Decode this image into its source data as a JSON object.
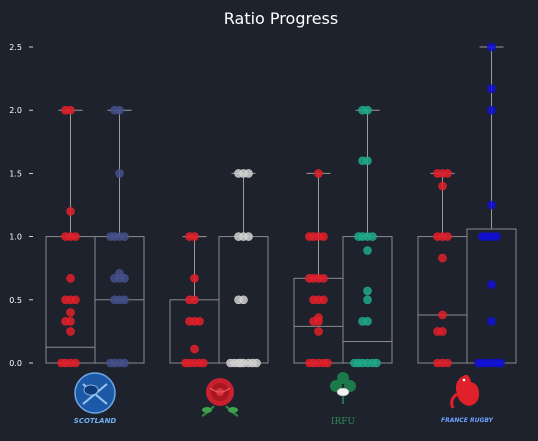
{
  "chart_data": {
    "type": "box",
    "title": "Ratio Progress",
    "ylim": [
      0,
      2.5
    ],
    "yticks": [
      0.0,
      0.5,
      1.0,
      1.5,
      2.0,
      2.5
    ],
    "ytick_labels": [
      "0.0",
      "0.5",
      "1.0",
      "1.5",
      "2.0",
      "2.5"
    ],
    "grid": false,
    "legend": "none",
    "categories": [
      "Scotland",
      "England",
      "Ireland",
      "France"
    ],
    "groups": [
      {
        "team": "Scotland",
        "logo_text": "SCOTLAND",
        "boxes": [
          {
            "color": "#e0202a",
            "q1": 0.0,
            "median": 0.125,
            "q3": 1.0,
            "whisker_low": 0.0,
            "whisker_high": 2.0,
            "points": [
              2.0,
              2.0,
              1.2,
              1.0,
              1.0,
              1.0,
              0.67,
              0.5,
              0.5,
              0.5,
              0.4,
              0.33,
              0.33,
              0.25,
              0.0,
              0.0,
              0.0,
              0.0
            ]
          },
          {
            "color": "#44508a",
            "q1": 0.0,
            "median": 0.5,
            "q3": 1.0,
            "whisker_low": 0.0,
            "whisker_high": 2.0,
            "points": [
              2.0,
              2.0,
              1.5,
              1.0,
              1.0,
              1.0,
              1.0,
              0.71,
              0.67,
              0.67,
              0.67,
              0.5,
              0.5,
              0.5,
              0.0,
              0.0,
              0.0,
              0.0
            ]
          }
        ]
      },
      {
        "team": "England",
        "logo_text": "",
        "boxes": [
          {
            "color": "#e0202a",
            "q1": 0.0,
            "median": 0.0,
            "q3": 0.5,
            "whisker_low": 0.0,
            "whisker_high": 1.0,
            "points": [
              1.0,
              1.0,
              0.67,
              0.5,
              0.5,
              0.33,
              0.33,
              0.33,
              0.11,
              0.0,
              0.0,
              0.0,
              0.0,
              0.0
            ]
          },
          {
            "color": "#d0d0d0",
            "q1": 0.0,
            "median": 0.0,
            "q3": 1.0,
            "whisker_low": 0.0,
            "whisker_high": 1.5,
            "points": [
              1.5,
              1.5,
              1.5,
              1.0,
              1.0,
              1.0,
              0.5,
              0.5,
              0.0,
              0.0,
              0.0,
              0.0,
              0.0,
              0.0,
              0.0,
              0.0
            ]
          }
        ]
      },
      {
        "team": "Ireland",
        "logo_text": "IRFU",
        "boxes": [
          {
            "color": "#e0202a",
            "q1": 0.0,
            "median": 0.29,
            "q3": 0.67,
            "whisker_low": 0.0,
            "whisker_high": 1.5,
            "points": [
              1.5,
              1.0,
              1.0,
              1.0,
              1.0,
              0.67,
              0.67,
              0.67,
              0.67,
              0.5,
              0.5,
              0.5,
              0.36,
              0.33,
              0.33,
              0.25,
              0.0,
              0.0,
              0.0,
              0.0,
              0.0
            ]
          },
          {
            "color": "#1fa98a",
            "q1": 0.0,
            "median": 0.17,
            "q3": 1.0,
            "whisker_low": 0.0,
            "whisker_high": 2.0,
            "points": [
              2.0,
              2.0,
              1.6,
              1.6,
              1.0,
              1.0,
              1.0,
              1.0,
              0.89,
              0.57,
              0.5,
              0.33,
              0.33,
              0.0,
              0.0,
              0.0,
              0.0,
              0.0,
              0.0
            ]
          }
        ]
      },
      {
        "team": "France",
        "logo_text": "FRANCE RUGBY",
        "boxes": [
          {
            "color": "#e0202a",
            "q1": 0.0,
            "median": 0.38,
            "q3": 1.0,
            "whisker_low": 0.0,
            "whisker_high": 1.5,
            "points": [
              1.5,
              1.5,
              1.5,
              1.4,
              1.0,
              1.0,
              1.0,
              0.83,
              0.38,
              0.25,
              0.25,
              0.0,
              0.0,
              0.0
            ]
          },
          {
            "color": "#1010d8",
            "q1": 0.0,
            "median": 0.0,
            "q3": 1.06,
            "whisker_low": 0.0,
            "whisker_high": 2.5,
            "points": [
              2.5,
              2.17,
              2.0,
              1.25,
              1.0,
              1.0,
              1.0,
              1.0,
              0.62,
              0.33,
              0.0,
              0.0,
              0.0,
              0.0,
              0.0,
              0.0
            ]
          }
        ]
      }
    ]
  },
  "colors": {
    "background": "#1e222d",
    "box_edge": "#8a8a8a",
    "whisker": "#9a9a9a",
    "text": "#ffffff"
  }
}
